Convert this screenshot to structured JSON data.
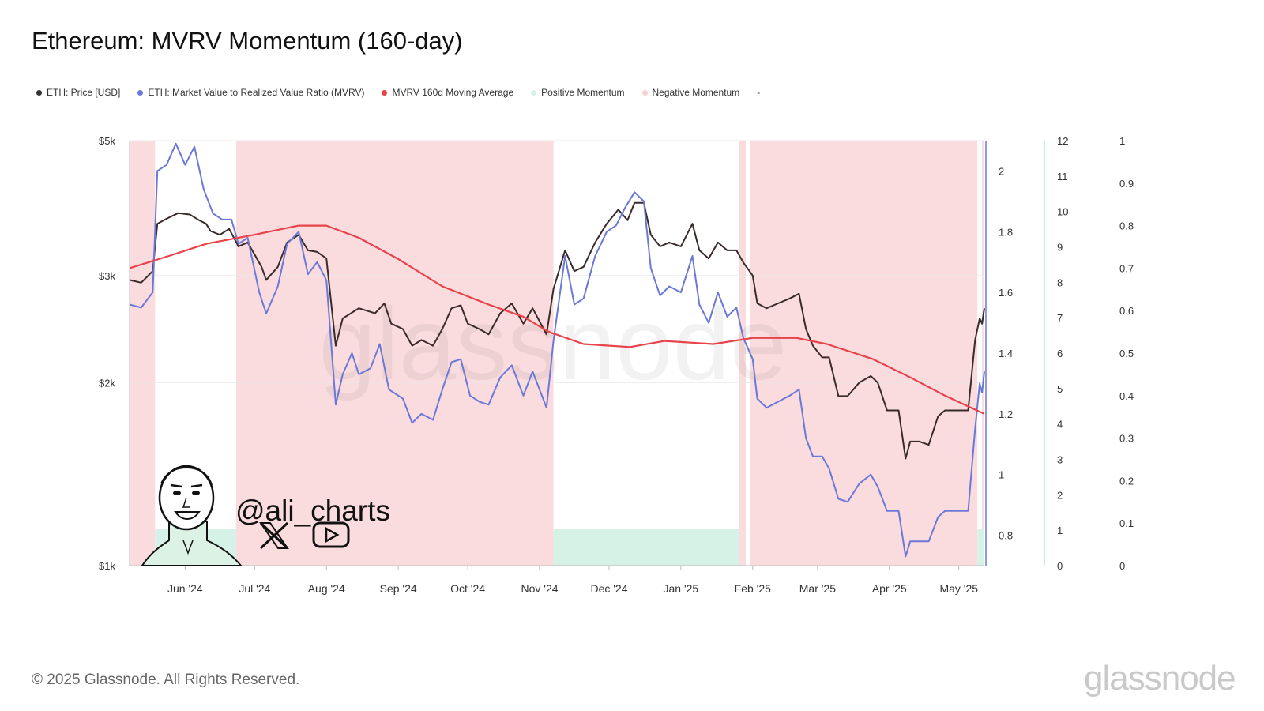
{
  "title": "Ethereum: MVRV Momentum (160-day)",
  "legend": [
    {
      "label": "ETH: Price [USD]",
      "color": "#333333"
    },
    {
      "label": "ETH: Market Value to Realized Value Ratio (MVRV)",
      "color": "#6b78d8"
    },
    {
      "label": "MVRV 160d Moving Average",
      "color": "#e8434a"
    },
    {
      "label": "Positive Momentum",
      "color": "#d6f2e6"
    },
    {
      "label": "Negative Momentum",
      "color": "#f7d1d3"
    },
    {
      "label": "-",
      "color": ""
    }
  ],
  "footer": "© 2025 Glassnode. All Rights Reserved.",
  "brand": "glassnode",
  "watermark": "glassnode",
  "author_handle": "@ali_charts",
  "icons": [
    "avatar-caricature",
    "x-logo-icon",
    "youtube-icon"
  ],
  "chart_data": {
    "type": "line",
    "x_ticks": [
      "Jun '24",
      "Jul '24",
      "Aug '24",
      "Sep '24",
      "Oct '24",
      "Nov '24",
      "Dec '24",
      "Jan '25",
      "Feb '25",
      "Mar '25",
      "Apr '25",
      "May '25"
    ],
    "x_range": [
      "2024-05-08",
      "2025-05-12"
    ],
    "price_axis": {
      "ticks": [
        "$5k",
        "$3k",
        "$2k",
        "$1k"
      ],
      "scale": "log",
      "range": [
        1000,
        5000
      ]
    },
    "mvrv_axis": {
      "ticks": [
        "2",
        "1.8",
        "1.6",
        "1.4",
        "1.2",
        "1",
        "0.8"
      ],
      "range": [
        0.7,
        2.1
      ]
    },
    "axis3": {
      "ticks": [
        "12",
        "11",
        "10",
        "9",
        "8",
        "7",
        "6",
        "5",
        "4",
        "3",
        "2",
        "1",
        "0"
      ],
      "range": [
        0,
        12
      ]
    },
    "axis4": {
      "ticks": [
        "1",
        "0.9",
        "0.8",
        "0.7",
        "0.6",
        "0.5",
        "0.4",
        "0.3",
        "0.2",
        "0.1",
        "0"
      ],
      "range": [
        0,
        1
      ]
    },
    "negative_momentum_periods": [
      [
        "2024-05-08",
        "2024-05-19"
      ],
      [
        "2024-06-23",
        "2024-11-07"
      ],
      [
        "2025-01-26",
        "2025-01-29"
      ],
      [
        "2025-01-31",
        "2025-05-09"
      ],
      [
        "2025-05-11",
        "2025-05-12"
      ]
    ],
    "positive_momentum_periods": [
      [
        "2024-05-19",
        "2024-06-23"
      ],
      [
        "2024-11-07",
        "2025-01-26"
      ],
      [
        "2025-05-09",
        "2025-05-12"
      ]
    ],
    "series": [
      {
        "name": "ETH: Price [USD]",
        "axis": "price",
        "color": "#3a2a2a",
        "points": [
          [
            "2024-05-08",
            2950
          ],
          [
            "2024-05-13",
            2920
          ],
          [
            "2024-05-18",
            3050
          ],
          [
            "2024-05-20",
            3650
          ],
          [
            "2024-05-24",
            3720
          ],
          [
            "2024-05-29",
            3800
          ],
          [
            "2024-06-03",
            3780
          ],
          [
            "2024-06-07",
            3700
          ],
          [
            "2024-06-10",
            3650
          ],
          [
            "2024-06-12",
            3550
          ],
          [
            "2024-06-16",
            3500
          ],
          [
            "2024-06-20",
            3580
          ],
          [
            "2024-06-24",
            3350
          ],
          [
            "2024-06-28",
            3400
          ],
          [
            "2024-07-04",
            3100
          ],
          [
            "2024-07-06",
            2950
          ],
          [
            "2024-07-11",
            3100
          ],
          [
            "2024-07-15",
            3400
          ],
          [
            "2024-07-20",
            3500
          ],
          [
            "2024-07-24",
            3300
          ],
          [
            "2024-07-28",
            3280
          ],
          [
            "2024-08-01",
            3200
          ],
          [
            "2024-08-05",
            2300
          ],
          [
            "2024-08-08",
            2550
          ],
          [
            "2024-08-15",
            2650
          ],
          [
            "2024-08-22",
            2600
          ],
          [
            "2024-08-26",
            2700
          ],
          [
            "2024-08-29",
            2500
          ],
          [
            "2024-09-03",
            2450
          ],
          [
            "2024-09-07",
            2300
          ],
          [
            "2024-09-11",
            2350
          ],
          [
            "2024-09-16",
            2300
          ],
          [
            "2024-09-20",
            2450
          ],
          [
            "2024-09-24",
            2650
          ],
          [
            "2024-09-28",
            2680
          ],
          [
            "2024-10-01",
            2500
          ],
          [
            "2024-10-06",
            2450
          ],
          [
            "2024-10-10",
            2400
          ],
          [
            "2024-10-15",
            2600
          ],
          [
            "2024-10-20",
            2700
          ],
          [
            "2024-10-25",
            2500
          ],
          [
            "2024-10-29",
            2650
          ],
          [
            "2024-11-04",
            2400
          ],
          [
            "2024-11-07",
            2850
          ],
          [
            "2024-11-12",
            3300
          ],
          [
            "2024-11-16",
            3050
          ],
          [
            "2024-11-20",
            3100
          ],
          [
            "2024-11-25",
            3400
          ],
          [
            "2024-11-30",
            3650
          ],
          [
            "2024-12-05",
            3850
          ],
          [
            "2024-12-09",
            3700
          ],
          [
            "2024-12-12",
            3950
          ],
          [
            "2024-12-16",
            3950
          ],
          [
            "2024-12-19",
            3500
          ],
          [
            "2024-12-23",
            3350
          ],
          [
            "2024-12-27",
            3400
          ],
          [
            "2025-01-01",
            3350
          ],
          [
            "2025-01-06",
            3650
          ],
          [
            "2025-01-09",
            3300
          ],
          [
            "2025-01-13",
            3200
          ],
          [
            "2025-01-17",
            3400
          ],
          [
            "2025-01-21",
            3300
          ],
          [
            "2025-01-25",
            3300
          ],
          [
            "2025-01-28",
            3150
          ],
          [
            "2025-02-01",
            3000
          ],
          [
            "2025-02-03",
            2700
          ],
          [
            "2025-02-07",
            2650
          ],
          [
            "2025-02-12",
            2700
          ],
          [
            "2025-02-17",
            2750
          ],
          [
            "2025-02-21",
            2800
          ],
          [
            "2025-02-24",
            2450
          ],
          [
            "2025-02-27",
            2300
          ],
          [
            "2025-03-03",
            2200
          ],
          [
            "2025-03-06",
            2200
          ],
          [
            "2025-03-10",
            1900
          ],
          [
            "2025-03-14",
            1900
          ],
          [
            "2025-03-19",
            2000
          ],
          [
            "2025-03-24",
            2050
          ],
          [
            "2025-03-27",
            2000
          ],
          [
            "2025-03-31",
            1800
          ],
          [
            "2025-04-05",
            1800
          ],
          [
            "2025-04-08",
            1500
          ],
          [
            "2025-04-10",
            1600
          ],
          [
            "2025-04-14",
            1600
          ],
          [
            "2025-04-18",
            1580
          ],
          [
            "2025-04-22",
            1760
          ],
          [
            "2025-04-25",
            1800
          ],
          [
            "2025-04-30",
            1800
          ],
          [
            "2025-05-05",
            1800
          ],
          [
            "2025-05-08",
            2350
          ],
          [
            "2025-05-10",
            2550
          ],
          [
            "2025-05-11",
            2500
          ],
          [
            "2025-05-12",
            2650
          ]
        ]
      },
      {
        "name": "ETH: Market Value to Realized Value Ratio (MVRV)",
        "axis": "mvrv",
        "color": "#6b78d8",
        "points": [
          [
            "2024-05-08",
            1.56
          ],
          [
            "2024-05-13",
            1.55
          ],
          [
            "2024-05-18",
            1.6
          ],
          [
            "2024-05-20",
            2.0
          ],
          [
            "2024-05-24",
            2.02
          ],
          [
            "2024-05-28",
            2.09
          ],
          [
            "2024-06-01",
            2.02
          ],
          [
            "2024-06-05",
            2.08
          ],
          [
            "2024-06-09",
            1.94
          ],
          [
            "2024-06-13",
            1.86
          ],
          [
            "2024-06-17",
            1.84
          ],
          [
            "2024-06-21",
            1.84
          ],
          [
            "2024-06-24",
            1.76
          ],
          [
            "2024-06-28",
            1.78
          ],
          [
            "2024-07-03",
            1.6
          ],
          [
            "2024-07-06",
            1.53
          ],
          [
            "2024-07-11",
            1.62
          ],
          [
            "2024-07-15",
            1.76
          ],
          [
            "2024-07-20",
            1.8
          ],
          [
            "2024-07-24",
            1.66
          ],
          [
            "2024-07-28",
            1.7
          ],
          [
            "2024-08-01",
            1.64
          ],
          [
            "2024-08-05",
            1.23
          ],
          [
            "2024-08-08",
            1.33
          ],
          [
            "2024-08-12",
            1.4
          ],
          [
            "2024-08-15",
            1.33
          ],
          [
            "2024-08-20",
            1.35
          ],
          [
            "2024-08-24",
            1.43
          ],
          [
            "2024-08-28",
            1.28
          ],
          [
            "2024-09-03",
            1.25
          ],
          [
            "2024-09-07",
            1.17
          ],
          [
            "2024-09-11",
            1.2
          ],
          [
            "2024-09-16",
            1.18
          ],
          [
            "2024-09-20",
            1.28
          ],
          [
            "2024-09-24",
            1.37
          ],
          [
            "2024-09-28",
            1.38
          ],
          [
            "2024-10-02",
            1.26
          ],
          [
            "2024-10-06",
            1.24
          ],
          [
            "2024-10-10",
            1.23
          ],
          [
            "2024-10-15",
            1.32
          ],
          [
            "2024-10-20",
            1.36
          ],
          [
            "2024-10-25",
            1.26
          ],
          [
            "2024-10-29",
            1.34
          ],
          [
            "2024-11-04",
            1.22
          ],
          [
            "2024-11-07",
            1.44
          ],
          [
            "2024-11-12",
            1.72
          ],
          [
            "2024-11-16",
            1.56
          ],
          [
            "2024-11-20",
            1.58
          ],
          [
            "2024-11-25",
            1.72
          ],
          [
            "2024-11-30",
            1.8
          ],
          [
            "2024-12-04",
            1.82
          ],
          [
            "2024-12-08",
            1.88
          ],
          [
            "2024-12-12",
            1.93
          ],
          [
            "2024-12-16",
            1.9
          ],
          [
            "2024-12-19",
            1.68
          ],
          [
            "2024-12-23",
            1.59
          ],
          [
            "2024-12-27",
            1.62
          ],
          [
            "2025-01-01",
            1.6
          ],
          [
            "2025-01-06",
            1.72
          ],
          [
            "2025-01-09",
            1.56
          ],
          [
            "2025-01-13",
            1.5
          ],
          [
            "2025-01-17",
            1.6
          ],
          [
            "2025-01-21",
            1.52
          ],
          [
            "2025-01-25",
            1.55
          ],
          [
            "2025-01-28",
            1.45
          ],
          [
            "2025-02-01",
            1.38
          ],
          [
            "2025-02-03",
            1.25
          ],
          [
            "2025-02-07",
            1.22
          ],
          [
            "2025-02-12",
            1.24
          ],
          [
            "2025-02-17",
            1.26
          ],
          [
            "2025-02-21",
            1.28
          ],
          [
            "2025-02-24",
            1.12
          ],
          [
            "2025-02-27",
            1.06
          ],
          [
            "2025-03-03",
            1.06
          ],
          [
            "2025-03-06",
            1.02
          ],
          [
            "2025-03-10",
            0.92
          ],
          [
            "2025-03-14",
            0.91
          ],
          [
            "2025-03-19",
            0.97
          ],
          [
            "2025-03-24",
            1.0
          ],
          [
            "2025-03-27",
            0.96
          ],
          [
            "2025-03-31",
            0.88
          ],
          [
            "2025-04-05",
            0.88
          ],
          [
            "2025-04-08",
            0.73
          ],
          [
            "2025-04-10",
            0.78
          ],
          [
            "2025-04-14",
            0.78
          ],
          [
            "2025-04-18",
            0.78
          ],
          [
            "2025-04-22",
            0.86
          ],
          [
            "2025-04-25",
            0.88
          ],
          [
            "2025-04-30",
            0.88
          ],
          [
            "2025-05-05",
            0.88
          ],
          [
            "2025-05-08",
            1.15
          ],
          [
            "2025-05-10",
            1.3
          ],
          [
            "2025-05-11",
            1.27
          ],
          [
            "2025-05-12",
            1.34
          ]
        ]
      },
      {
        "name": "MVRV 160d Moving Average",
        "axis": "mvrv",
        "color": "#e8434a",
        "points": [
          [
            "2024-05-08",
            1.68
          ],
          [
            "2024-05-25",
            1.72
          ],
          [
            "2024-06-10",
            1.76
          ],
          [
            "2024-07-01",
            1.79
          ],
          [
            "2024-07-20",
            1.82
          ],
          [
            "2024-08-01",
            1.82
          ],
          [
            "2024-08-15",
            1.78
          ],
          [
            "2024-09-01",
            1.71
          ],
          [
            "2024-09-20",
            1.62
          ],
          [
            "2024-10-10",
            1.56
          ],
          [
            "2024-10-25",
            1.52
          ],
          [
            "2024-11-05",
            1.47
          ],
          [
            "2024-11-20",
            1.43
          ],
          [
            "2024-12-10",
            1.42
          ],
          [
            "2024-12-25",
            1.44
          ],
          [
            "2025-01-15",
            1.43
          ],
          [
            "2025-02-01",
            1.45
          ],
          [
            "2025-02-20",
            1.45
          ],
          [
            "2025-03-05",
            1.43
          ],
          [
            "2025-03-25",
            1.38
          ],
          [
            "2025-04-10",
            1.32
          ],
          [
            "2025-04-25",
            1.26
          ],
          [
            "2025-05-12",
            1.2
          ]
        ]
      }
    ]
  }
}
